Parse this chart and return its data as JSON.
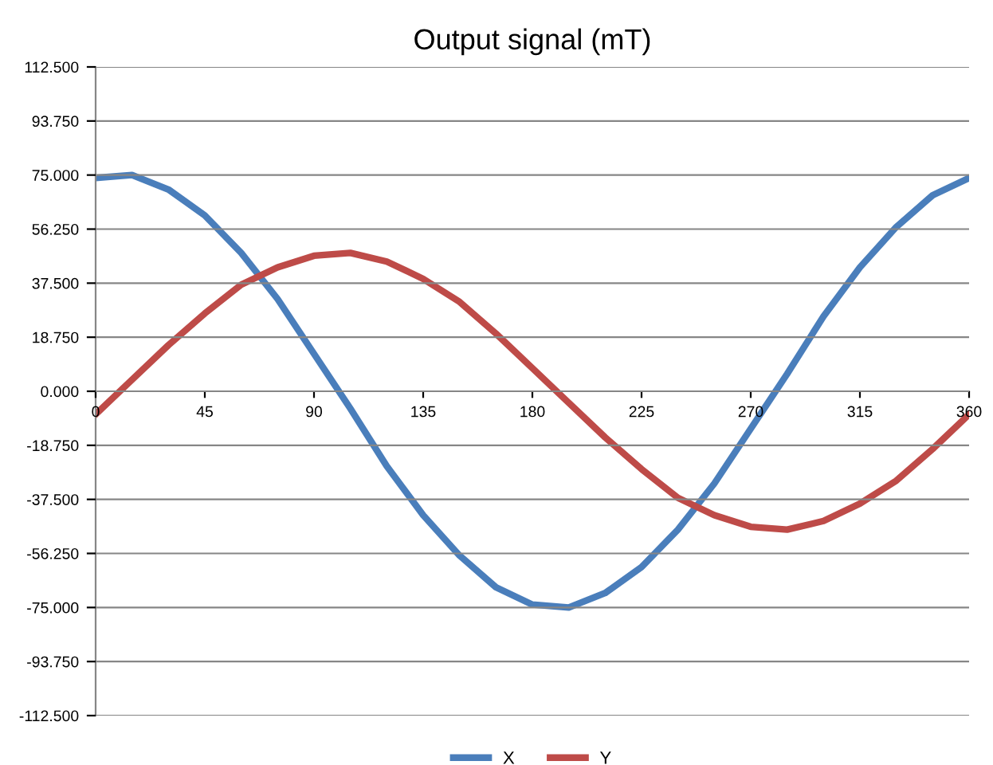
{
  "chart_data": {
    "type": "line",
    "title": "Output signal (mT)",
    "x": [
      0,
      15,
      30,
      45,
      60,
      75,
      90,
      105,
      120,
      135,
      150,
      165,
      180,
      195,
      210,
      225,
      240,
      255,
      270,
      285,
      300,
      315,
      330,
      345,
      360
    ],
    "series": [
      {
        "name": "X",
        "color": "#4a7ebb",
        "values": [
          74,
          75,
          70,
          61,
          48,
          32,
          13,
          -6,
          -26,
          -43,
          -57,
          -68,
          -74,
          -75,
          -70,
          -61,
          -48,
          -32,
          -13,
          6,
          26,
          43,
          57,
          68,
          74
        ]
      },
      {
        "name": "Y",
        "color": "#be4b48",
        "values": [
          -8,
          4,
          16,
          27,
          37,
          43,
          47,
          48,
          45,
          39,
          31,
          20,
          8,
          -4,
          -16,
          -27,
          -37,
          -43,
          -47,
          -48,
          -45,
          -39,
          -31,
          -20,
          -8
        ]
      }
    ],
    "xlim": [
      0,
      360
    ],
    "xticks": [
      0,
      45,
      90,
      135,
      180,
      225,
      270,
      315,
      360
    ],
    "ylim": [
      -112.5,
      112.5
    ],
    "yticks": [
      {
        "value": -112.5,
        "label": "-112.500"
      },
      {
        "value": -93.75,
        "label": "-93.750"
      },
      {
        "value": -75,
        "label": "-75.000"
      },
      {
        "value": -56.25,
        "label": "-56.250"
      },
      {
        "value": -37.5,
        "label": "-37.500"
      },
      {
        "value": -18.75,
        "label": "-18.750"
      },
      {
        "value": 0,
        "label": "0.000"
      },
      {
        "value": 18.75,
        "label": "18.750"
      },
      {
        "value": 37.5,
        "label": "37.500"
      },
      {
        "value": 56.25,
        "label": "56.250"
      },
      {
        "value": 75,
        "label": "75.000"
      },
      {
        "value": 93.75,
        "label": "93.750"
      },
      {
        "value": 112.5,
        "label": "112.500"
      }
    ],
    "grid": "y",
    "legend": "bottom",
    "marker": "none",
    "line_style": "solid"
  }
}
